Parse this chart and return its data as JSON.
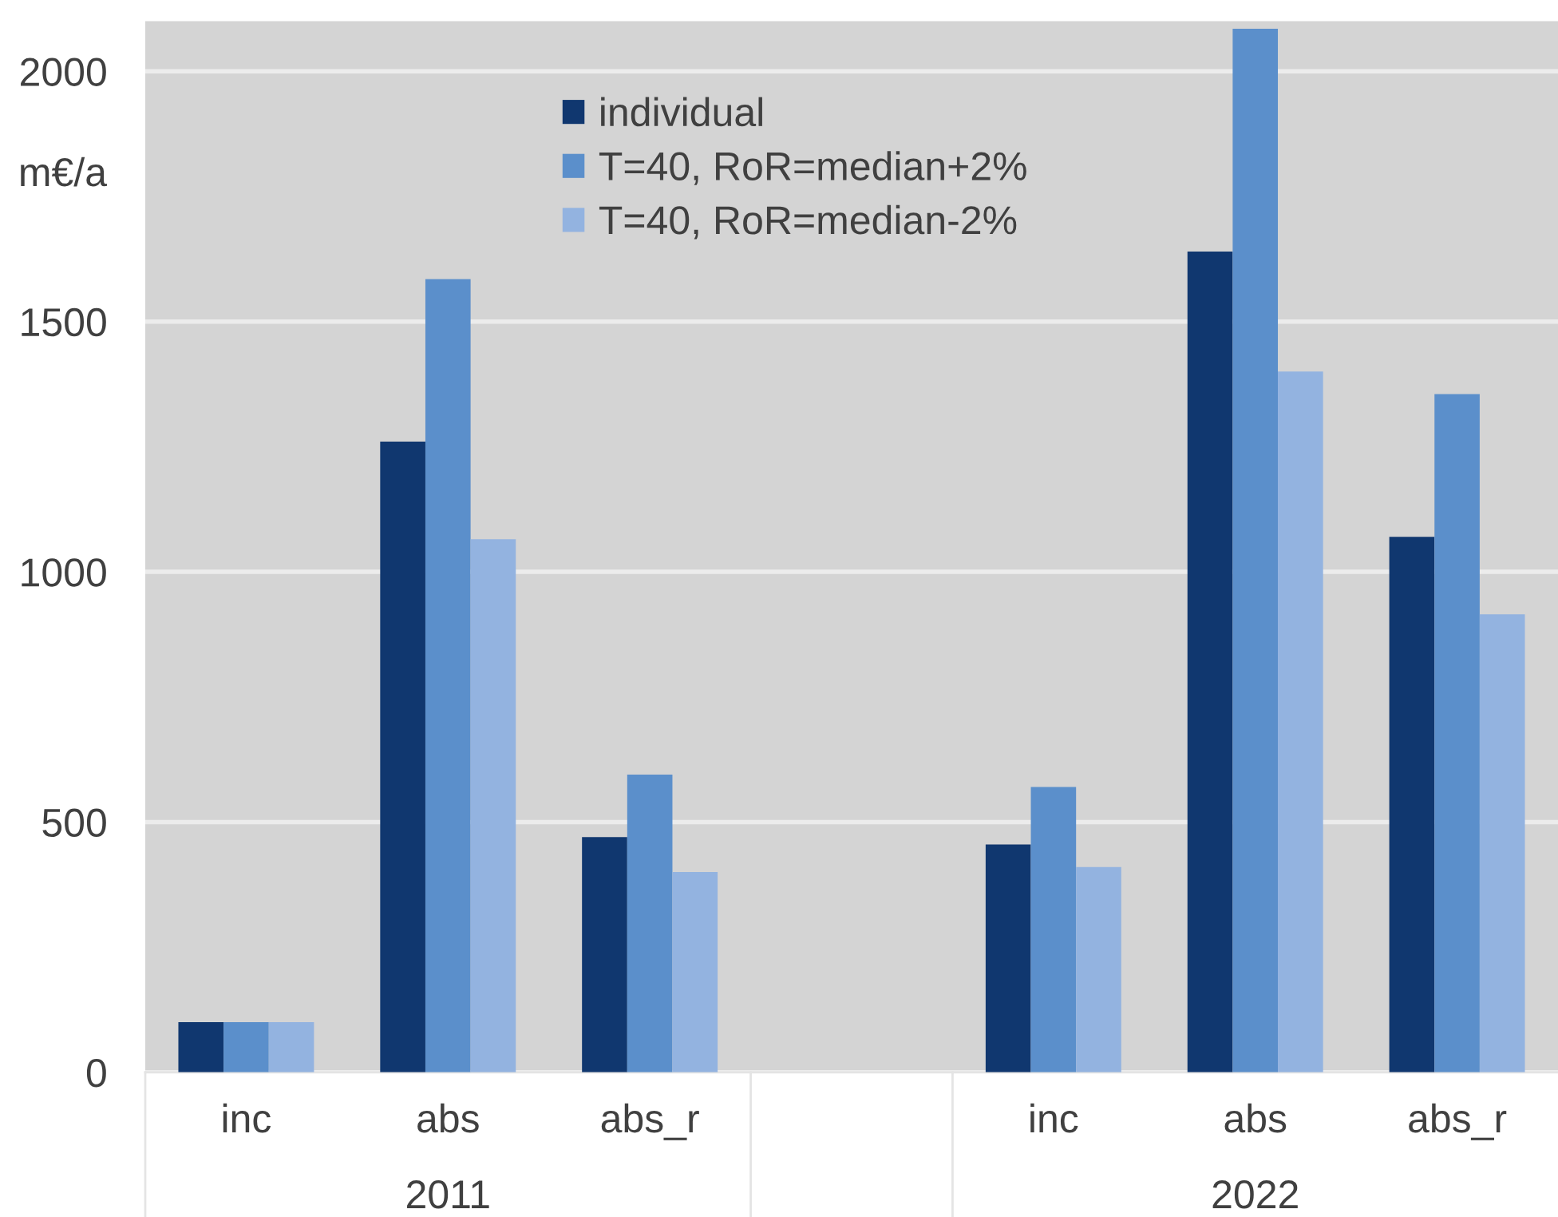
{
  "chart_data": {
    "type": "bar",
    "ylabel": "m€/a",
    "categories": [
      "inc",
      "abs",
      "abs_r",
      null,
      "inc",
      "abs",
      "abs_r"
    ],
    "series": [
      {
        "name": "individual",
        "color": "#10376f",
        "values": [
          100,
          1260,
          470,
          null,
          455,
          1640,
          1070
        ]
      },
      {
        "name": "T=40, RoR=median+2%",
        "color": "#5b8fcb",
        "values": [
          100,
          1585,
          595,
          null,
          570,
          2085,
          1355
        ]
      },
      {
        "name": "T=40, RoR=median-2%",
        "color": "#93b3e0",
        "values": [
          100,
          1065,
          400,
          null,
          410,
          1400,
          915
        ]
      }
    ],
    "ylim": [
      0,
      2100
    ],
    "yticks": [
      0,
      500,
      1000,
      1500,
      2000
    ],
    "grid": "y",
    "legend": "top",
    "annotations": [
      "2011",
      "2022"
    ]
  }
}
